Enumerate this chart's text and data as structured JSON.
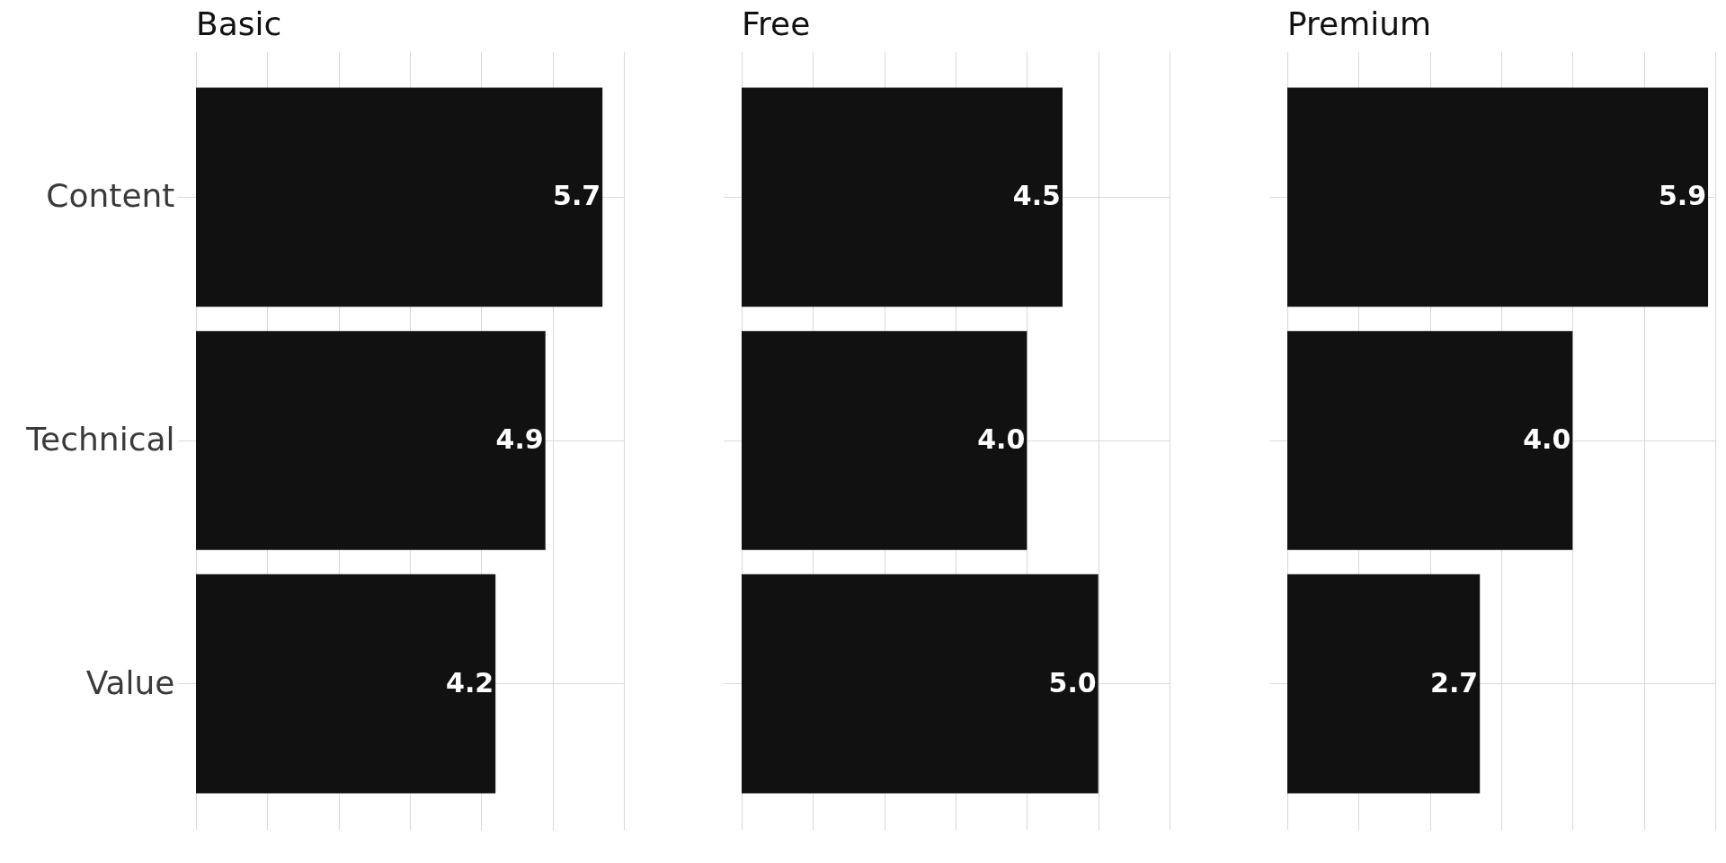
{
  "chart_data": [
    {
      "type": "bar",
      "orientation": "horizontal",
      "title": "Basic",
      "categories": [
        "Content",
        "Technical",
        "Value"
      ],
      "values": [
        5.7,
        4.9,
        4.2
      ],
      "value_labels": [
        "5.7",
        "4.9",
        "4.2"
      ],
      "color": "#111111",
      "xlim": [
        0,
        6
      ],
      "xticks": [
        0,
        1,
        2,
        3,
        4,
        5,
        6
      ],
      "grid": true,
      "tick_labels": "y"
    },
    {
      "type": "bar",
      "orientation": "horizontal",
      "title": "Free",
      "categories": [
        null,
        null,
        null
      ],
      "values": [
        4.5,
        4.0,
        5.0
      ],
      "value_labels": [
        "4.5",
        "4.0",
        "5.0"
      ],
      "color": "#111111",
      "xlim": [
        0,
        6
      ],
      "xticks": [
        0,
        1,
        2,
        3,
        4,
        5,
        6
      ],
      "grid": true,
      "tick_labels": false
    },
    {
      "type": "bar",
      "orientation": "horizontal",
      "title": "Premium",
      "categories": [
        null,
        null,
        null
      ],
      "values": [
        5.9,
        4.0,
        2.7
      ],
      "value_labels": [
        "5.9",
        "4.0",
        "2.7"
      ],
      "color": "#111111",
      "xlim": [
        0,
        6
      ],
      "xticks": [
        0,
        1,
        2,
        3,
        4,
        5,
        6
      ],
      "grid": true,
      "tick_labels": false
    }
  ]
}
